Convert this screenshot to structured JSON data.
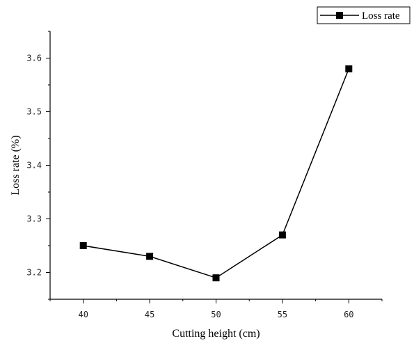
{
  "chart_data": {
    "type": "line",
    "x": [
      40,
      45,
      50,
      55,
      60
    ],
    "series": [
      {
        "name": "Loss rate",
        "values": [
          3.25,
          3.23,
          3.19,
          3.27,
          3.58
        ]
      }
    ],
    "xlabel": "Cutting height (cm)",
    "ylabel": "Loss rate (%)",
    "xlim": [
      37.5,
      62.5
    ],
    "ylim": [
      3.15,
      3.65
    ],
    "x_ticks": [
      40,
      45,
      50,
      55,
      60
    ],
    "x_tick_labels": [
      "40",
      "45",
      "50",
      "55",
      "60"
    ],
    "y_ticks": [
      3.2,
      3.3,
      3.4,
      3.5,
      3.6
    ],
    "y_tick_labels": [
      "3.2",
      "3.3",
      "3.4",
      "3.5",
      "3.6"
    ],
    "grid": false,
    "legend": {
      "position": "top-right",
      "entries": [
        "Loss rate"
      ]
    },
    "colors": {
      "series": "#000000",
      "axis": "#000000"
    },
    "marker": "square"
  }
}
